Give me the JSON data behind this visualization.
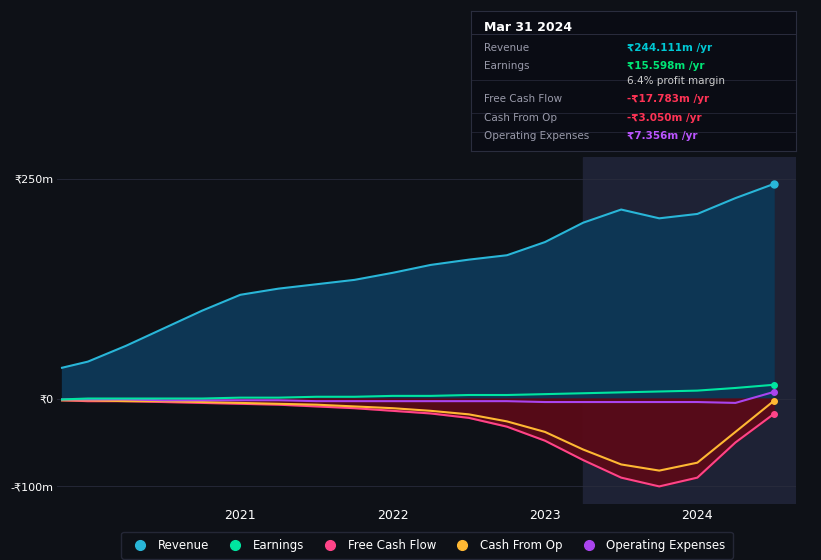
{
  "background_color": "#0e1117",
  "plot_bg_color": "#0e1117",
  "ylim": [
    -120,
    275
  ],
  "xlim": [
    2019.8,
    2024.65
  ],
  "yticks": [
    -100,
    0,
    250
  ],
  "ytick_labels": [
    "-₹100m",
    "₹0",
    "₹250m"
  ],
  "xticks": [
    2021,
    2022,
    2023,
    2024
  ],
  "info_box": {
    "title": "Mar 31 2024",
    "rows": [
      {
        "label": "Revenue",
        "value": "₹244.111m /yr",
        "value_color": "#00c8d4"
      },
      {
        "label": "Earnings",
        "value": "₹15.598m /yr",
        "value_color": "#00e676"
      },
      {
        "label": "",
        "value": "6.4% profit margin",
        "value_color": "#cccccc"
      },
      {
        "label": "Free Cash Flow",
        "value": "-₹17.783m /yr",
        "value_color": "#ff3355"
      },
      {
        "label": "Cash From Op",
        "value": "-₹3.050m /yr",
        "value_color": "#ff3355"
      },
      {
        "label": "Operating Expenses",
        "value": "₹7.356m /yr",
        "value_color": "#bb55ff"
      }
    ]
  },
  "series": {
    "revenue": {
      "color": "#29b6d8",
      "fill_color": "#0d3654",
      "label": "Revenue",
      "x": [
        2019.83,
        2020.0,
        2020.25,
        2020.5,
        2020.75,
        2021.0,
        2021.25,
        2021.5,
        2021.75,
        2022.0,
        2022.25,
        2022.5,
        2022.75,
        2023.0,
        2023.25,
        2023.5,
        2023.75,
        2024.0,
        2024.25,
        2024.5
      ],
      "y": [
        35,
        42,
        60,
        80,
        100,
        118,
        125,
        130,
        135,
        143,
        152,
        158,
        163,
        178,
        200,
        215,
        205,
        210,
        228,
        244
      ]
    },
    "earnings": {
      "color": "#00e5a0",
      "label": "Earnings",
      "x": [
        2019.83,
        2020.0,
        2020.25,
        2020.5,
        2020.75,
        2021.0,
        2021.25,
        2021.5,
        2021.75,
        2022.0,
        2022.25,
        2022.5,
        2022.75,
        2023.0,
        2023.25,
        2023.5,
        2023.75,
        2024.0,
        2024.25,
        2024.5
      ],
      "y": [
        -1,
        0,
        0,
        0,
        0,
        1,
        1,
        2,
        2,
        3,
        3,
        4,
        4,
        5,
        6,
        7,
        8,
        9,
        12,
        15.6
      ]
    },
    "free_cash_flow": {
      "color": "#ff4488",
      "label": "Free Cash Flow",
      "x": [
        2019.83,
        2020.0,
        2020.25,
        2020.5,
        2020.75,
        2021.0,
        2021.25,
        2021.5,
        2021.75,
        2022.0,
        2022.25,
        2022.5,
        2022.75,
        2023.0,
        2023.25,
        2023.5,
        2023.75,
        2024.0,
        2024.25,
        2024.5
      ],
      "y": [
        -2,
        -3,
        -3,
        -4,
        -5,
        -6,
        -7,
        -9,
        -11,
        -14,
        -17,
        -22,
        -32,
        -48,
        -70,
        -90,
        -100,
        -90,
        -50,
        -17.8
      ]
    },
    "cash_from_op": {
      "color": "#ffb833",
      "label": "Cash From Op",
      "x": [
        2019.83,
        2020.0,
        2020.25,
        2020.5,
        2020.75,
        2021.0,
        2021.25,
        2021.5,
        2021.75,
        2022.0,
        2022.25,
        2022.5,
        2022.75,
        2023.0,
        2023.25,
        2023.5,
        2023.75,
        2024.0,
        2024.25,
        2024.5
      ],
      "y": [
        -2,
        -2,
        -3,
        -3,
        -4,
        -5,
        -6,
        -7,
        -9,
        -11,
        -14,
        -18,
        -26,
        -38,
        -58,
        -75,
        -82,
        -73,
        -38,
        -3.0
      ]
    },
    "operating_expenses": {
      "color": "#aa44ee",
      "label": "Operating Expenses",
      "x": [
        2019.83,
        2020.0,
        2020.25,
        2020.5,
        2020.75,
        2021.0,
        2021.25,
        2021.5,
        2021.75,
        2022.0,
        2022.25,
        2022.5,
        2022.75,
        2023.0,
        2023.25,
        2023.5,
        2023.75,
        2024.0,
        2024.25,
        2024.5
      ],
      "y": [
        -1,
        -1,
        -1,
        -2,
        -2,
        -2,
        -2,
        -3,
        -3,
        -3,
        -3,
        -3,
        -3,
        -4,
        -4,
        -4,
        -4,
        -4,
        -5,
        7.4
      ]
    }
  },
  "vline_x": 2023.25,
  "highlight_color": "#1e2235",
  "legend_items": [
    {
      "label": "Revenue",
      "color": "#29b6d8"
    },
    {
      "label": "Earnings",
      "color": "#00e5a0"
    },
    {
      "label": "Free Cash Flow",
      "color": "#ff4488"
    },
    {
      "label": "Cash From Op",
      "color": "#ffb833"
    },
    {
      "label": "Operating Expenses",
      "color": "#aa44ee"
    }
  ]
}
